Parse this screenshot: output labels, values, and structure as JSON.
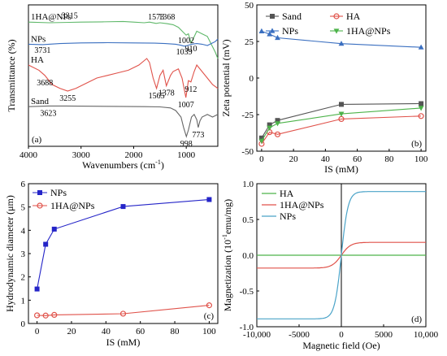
{
  "chart_data": [
    {
      "panel": "(a)",
      "type": "line",
      "xlabel": "Wavenumbers (cm",
      "xlabel_sup": "-1",
      "xlabel_end": ")",
      "ylabel": "Transmittance (%)",
      "xlim": [
        4000,
        400
      ],
      "x_ticks": [
        4000,
        3000,
        2000,
        1000
      ],
      "x_tick_labels": [
        "4000",
        "3000",
        "2000",
        "1000"
      ],
      "x_reversed": true,
      "y_ticks_shown": false,
      "series": [
        {
          "name": "1HA@NPs",
          "color": "#5fb86a",
          "points": [
            [
              4000,
              0.93
            ],
            [
              3600,
              0.925
            ],
            [
              3215,
              0.928
            ],
            [
              3000,
              0.93
            ],
            [
              2600,
              0.932
            ],
            [
              2200,
              0.935
            ],
            [
              2000,
              0.93
            ],
            [
              1800,
              0.925
            ],
            [
              1700,
              0.93
            ],
            [
              1573,
              0.92
            ],
            [
              1500,
              0.925
            ],
            [
              1368,
              0.918
            ],
            [
              1250,
              0.91
            ],
            [
              1150,
              0.89
            ],
            [
              1002,
              0.83
            ],
            [
              960,
              0.84
            ],
            [
              910,
              0.77
            ],
            [
              870,
              0.8
            ],
            [
              800,
              0.86
            ],
            [
              700,
              0.84
            ],
            [
              600,
              0.82
            ],
            [
              450,
              0.7
            ],
            [
              400,
              0.65
            ]
          ],
          "annotations": [
            {
              "label": "3215",
              "x": 3215
            },
            {
              "label": "1573",
              "x": 1573
            },
            {
              "label": "1368",
              "x": 1368
            },
            {
              "label": "910",
              "x": 910
            },
            {
              "label": "1002",
              "x": 1002
            }
          ]
        },
        {
          "name": "NPs",
          "color": "#3a6fc0",
          "points": [
            [
              4000,
              0.76
            ],
            [
              3731,
              0.757
            ],
            [
              3400,
              0.765
            ],
            [
              3000,
              0.77
            ],
            [
              2500,
              0.772
            ],
            [
              2000,
              0.77
            ],
            [
              1600,
              0.768
            ],
            [
              1400,
              0.765
            ],
            [
              1200,
              0.76
            ],
            [
              1100,
              0.752
            ],
            [
              1039,
              0.745
            ],
            [
              980,
              0.75
            ],
            [
              900,
              0.76
            ],
            [
              800,
              0.765
            ],
            [
              700,
              0.76
            ],
            [
              600,
              0.75
            ],
            [
              450,
              0.78
            ],
            [
              400,
              0.8
            ]
          ],
          "annotations": [
            {
              "label": "3731",
              "x": 3731
            },
            {
              "label": "1039",
              "x": 1039
            }
          ]
        },
        {
          "name": "HA",
          "color": "#e0524a",
          "points": [
            [
              4000,
              0.6
            ],
            [
              3800,
              0.56
            ],
            [
              3688,
              0.52
            ],
            [
              3550,
              0.45
            ],
            [
              3400,
              0.42
            ],
            [
              3255,
              0.4
            ],
            [
              3100,
              0.42
            ],
            [
              2900,
              0.46
            ],
            [
              2700,
              0.5
            ],
            [
              2500,
              0.52
            ],
            [
              2300,
              0.54
            ],
            [
              2100,
              0.56
            ],
            [
              1900,
              0.6
            ],
            [
              1750,
              0.65
            ],
            [
              1700,
              0.62
            ],
            [
              1630,
              0.5
            ],
            [
              1565,
              0.42
            ],
            [
              1500,
              0.52
            ],
            [
              1440,
              0.56
            ],
            [
              1378,
              0.44
            ],
            [
              1300,
              0.52
            ],
            [
              1250,
              0.55
            ],
            [
              1150,
              0.57
            ],
            [
              1080,
              0.5
            ],
            [
              1007,
              0.35
            ],
            [
              960,
              0.48
            ],
            [
              912,
              0.47
            ],
            [
              850,
              0.55
            ],
            [
              800,
              0.6
            ],
            [
              700,
              0.55
            ],
            [
              600,
              0.5
            ],
            [
              500,
              0.45
            ],
            [
              400,
              0.42
            ]
          ],
          "annotations": [
            {
              "label": "3688",
              "x": 3688
            },
            {
              "label": "3255",
              "x": 3255
            },
            {
              "label": "1565",
              "x": 1565
            },
            {
              "label": "1378",
              "x": 1378
            },
            {
              "label": "912",
              "x": 912
            },
            {
              "label": "1007",
              "x": 1007
            }
          ]
        },
        {
          "name": "Sand",
          "color": "#666666",
          "points": [
            [
              4000,
              0.28
            ],
            [
              3623,
              0.285
            ],
            [
              3300,
              0.285
            ],
            [
              2800,
              0.283
            ],
            [
              2300,
              0.282
            ],
            [
              1800,
              0.28
            ],
            [
              1500,
              0.278
            ],
            [
              1300,
              0.27
            ],
            [
              1200,
              0.25
            ],
            [
              1100,
              0.2
            ],
            [
              1050,
              0.12
            ],
            [
              998,
              0.05
            ],
            [
              960,
              0.1
            ],
            [
              900,
              0.2
            ],
            [
              850,
              0.22
            ],
            [
              800,
              0.18
            ],
            [
              773,
              0.12
            ],
            [
              740,
              0.17
            ],
            [
              700,
              0.2
            ],
            [
              600,
              0.22
            ],
            [
              500,
              0.2
            ],
            [
              400,
              0.22
            ]
          ],
          "annotations": [
            {
              "label": "3623",
              "x": 3623
            },
            {
              "label": "998",
              "x": 998
            },
            {
              "label": "773",
              "x": 773
            }
          ]
        }
      ]
    },
    {
      "panel": "(b)",
      "type": "line",
      "xlabel": "IS (mM)",
      "ylabel": "Zeta potential (mV)",
      "xlim": [
        -3,
        103
      ],
      "ylim": [
        -50,
        50
      ],
      "x_ticks": [
        0,
        20,
        40,
        60,
        80,
        100
      ],
      "y_ticks": [
        -50,
        -25,
        0,
        25,
        50
      ],
      "legend": "top",
      "series": [
        {
          "name": "Sand",
          "color": "#555555",
          "marker": "square",
          "x": [
            0,
            5,
            10,
            50,
            100
          ],
          "values": [
            -41,
            -32,
            -29,
            -18,
            -17.5
          ]
        },
        {
          "name": "HA",
          "color": "#e0524a",
          "marker": "circle",
          "x": [
            0,
            5,
            10,
            50,
            100
          ],
          "values": [
            -45,
            -37,
            -38.5,
            -28,
            -26
          ]
        },
        {
          "name": "NPs",
          "color": "#3a6fc0",
          "marker": "triangle-up",
          "x": [
            0,
            5,
            10,
            50,
            100
          ],
          "values": [
            32,
            30,
            27.5,
            23.5,
            21
          ]
        },
        {
          "name": "1HA@NPs",
          "color": "#4db34a",
          "marker": "triangle-down",
          "x": [
            0,
            5,
            10,
            50,
            100
          ],
          "values": [
            -43,
            -34,
            -31,
            -24.5,
            -20.5
          ]
        }
      ]
    },
    {
      "panel": "(c)",
      "type": "line",
      "xlabel": "IS (mM)",
      "ylabel": "Hydrodynamic diameter (μm)",
      "xlim": [
        -5,
        105
      ],
      "ylim": [
        0,
        6
      ],
      "x_ticks": [
        0,
        20,
        40,
        60,
        80,
        100
      ],
      "y_ticks": [
        0,
        1,
        2,
        3,
        4,
        5,
        6
      ],
      "legend": "top-left",
      "series": [
        {
          "name": "NPs",
          "color": "#2525c8",
          "marker": "square",
          "x": [
            0,
            5,
            10,
            50,
            100
          ],
          "values": [
            1.48,
            3.4,
            4.05,
            5.02,
            5.32
          ]
        },
        {
          "name": "1HA@NPs",
          "color": "#e0524a",
          "marker": "circle",
          "x": [
            0,
            5,
            10,
            50,
            100
          ],
          "values": [
            0.35,
            0.34,
            0.37,
            0.42,
            0.78
          ]
        }
      ]
    },
    {
      "panel": "(d)",
      "type": "line",
      "xlabel": "Magnetic field (Oe)",
      "ylabel": "Magnetization (10",
      "ylabel_sup": "-1",
      "ylabel_end": "emu/mg)",
      "xlim": [
        -10000,
        10000
      ],
      "ylim": [
        -1.0,
        1.0
      ],
      "x_ticks": [
        -10000,
        -5000,
        0,
        5000,
        10000
      ],
      "x_tick_labels": [
        "-10,000",
        "-5000",
        "0",
        "5000",
        "10,000"
      ],
      "y_ticks": [
        -1.0,
        -0.5,
        0.0,
        0.5,
        1.0
      ],
      "y_tick_labels": [
        "-1.0",
        "-0.5",
        "0.0",
        "0.5",
        "1.0"
      ],
      "legend": "top-left",
      "series": [
        {
          "name": "HA",
          "color": "#4db34a",
          "saturation": 0.0,
          "field_scale": 500
        },
        {
          "name": "1HA@NPs",
          "color": "#e0524a",
          "saturation": 0.18,
          "field_scale": 500
        },
        {
          "name": "NPs",
          "color": "#4aa3c8",
          "saturation": 0.89,
          "field_scale": 500
        }
      ]
    }
  ]
}
